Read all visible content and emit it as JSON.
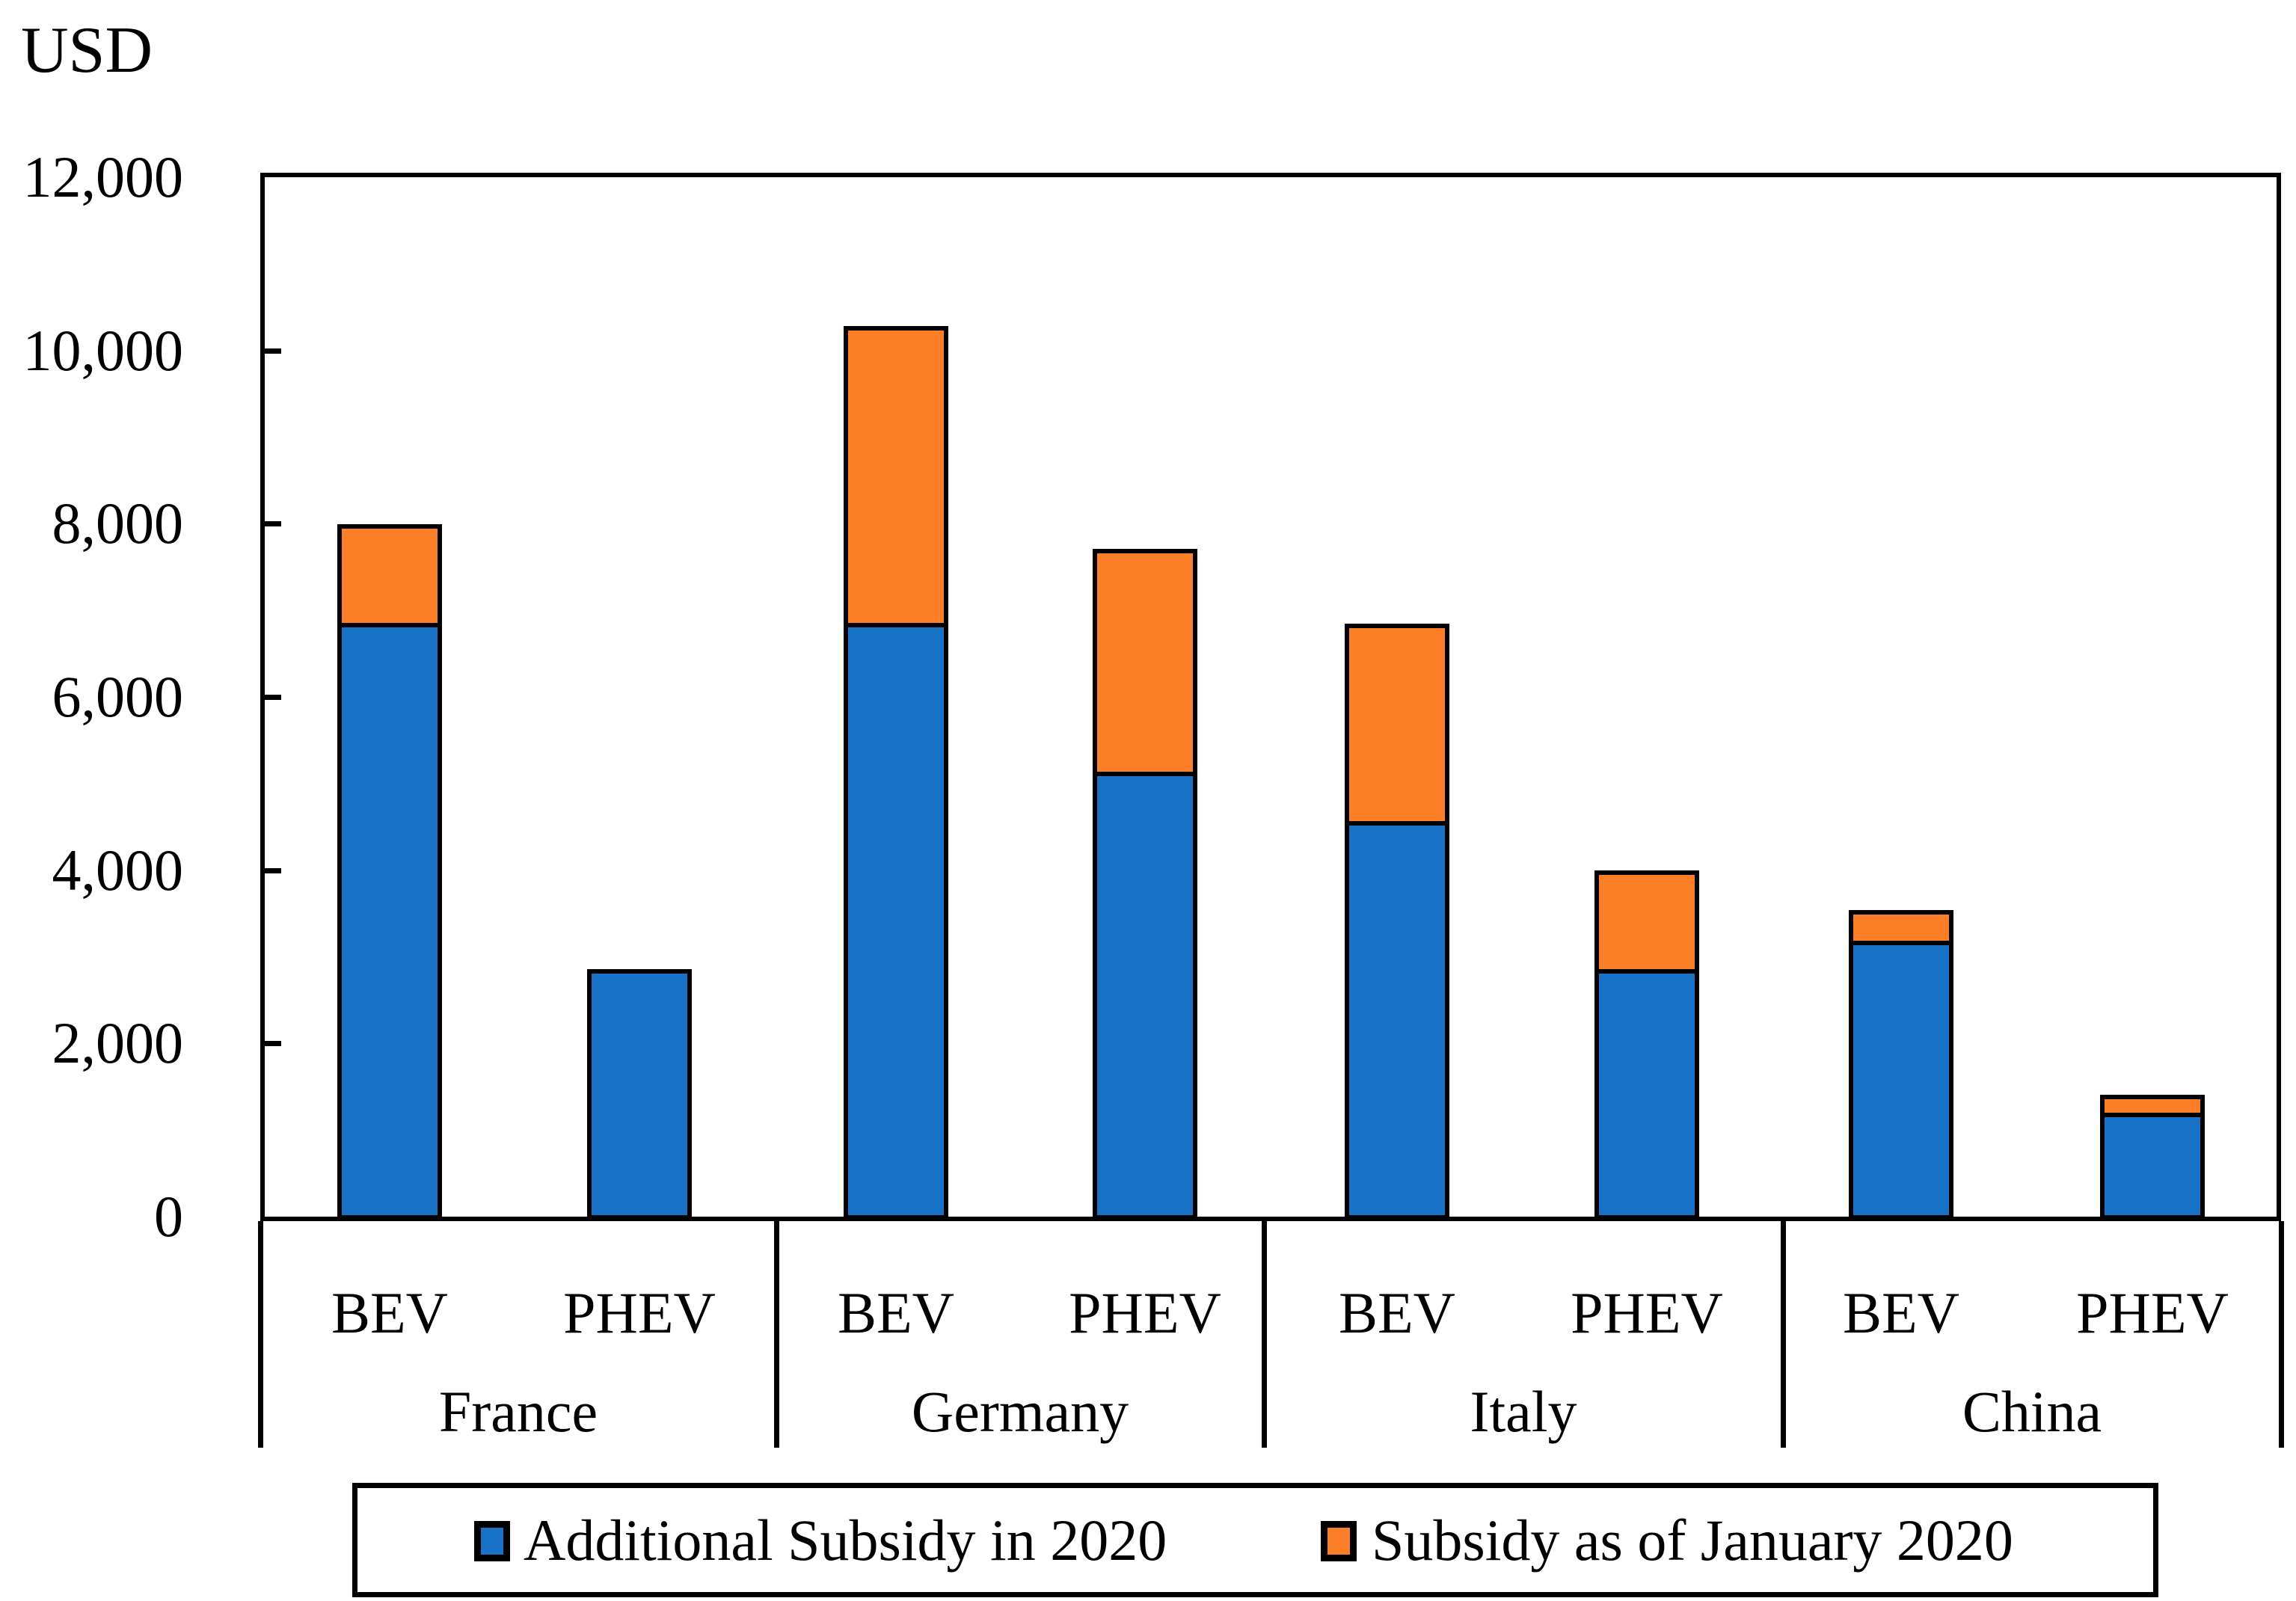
{
  "y_axis_title": "USD",
  "legend": [
    {
      "label": "Additional Subsidy in 2020",
      "color": "#1773C7"
    },
    {
      "label": "Subsidy as of January 2020",
      "color": "#FC7E27"
    }
  ],
  "chart_data": {
    "type": "bar",
    "stacked": true,
    "title": "",
    "ylabel": "USD",
    "xlabel": "",
    "ylim": [
      0,
      12000
    ],
    "ytick_interval": 2000,
    "ytick_labels": [
      "0",
      "2,000",
      "4,000",
      "6,000",
      "8,000",
      "10,000",
      "12,000"
    ],
    "grid": false,
    "legend_position": "bottom",
    "groups": [
      "France",
      "Germany",
      "Italy",
      "China"
    ],
    "categories_per_group": [
      "BEV",
      "PHEV"
    ],
    "bar_labels": [
      "BEV",
      "PHEV",
      "BEV",
      "PHEV",
      "BEV",
      "PHEV",
      "BEV",
      "PHEV"
    ],
    "series": [
      {
        "name": "Additional Subsidy in 2020",
        "color": "#1773C7",
        "values": [
          6850,
          2860,
          6850,
          5140,
          4570,
          2860,
          3190,
          1200
        ]
      },
      {
        "name": "Subsidy as of January 2020",
        "color": "#FC7E27",
        "values": [
          1140,
          0,
          3430,
          2570,
          2280,
          1140,
          350,
          210
        ]
      }
    ],
    "totals": [
      7990,
      2860,
      10280,
      7710,
      6850,
      4000,
      3540,
      1410
    ]
  }
}
